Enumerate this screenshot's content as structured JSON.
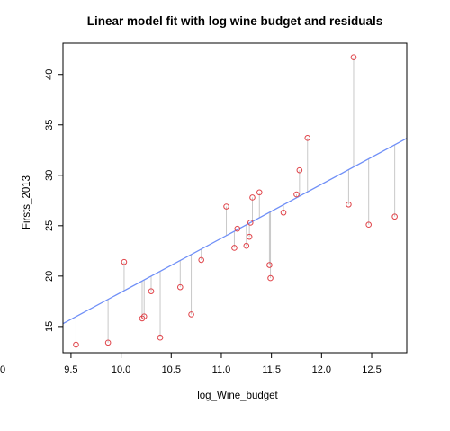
{
  "chart_data": {
    "type": "scatter",
    "title": "Linear model fit with log wine budget and residuals",
    "xlabel": "log_Wine_budget",
    "ylabel": "Firsts_2013",
    "xlim": [
      9.42,
      12.85
    ],
    "ylim": [
      12.4,
      43.1
    ],
    "x_ticks": [
      9.5,
      10.0,
      10.5,
      11.0,
      11.5,
      12.0,
      12.5
    ],
    "x_tick_labels": [
      "9.5",
      "10.0",
      "10.5",
      "11.0",
      "11.5",
      "12.0",
      "12.5"
    ],
    "y_ticks": [
      15,
      20,
      25,
      30,
      35,
      40
    ],
    "y_tick_labels": [
      "15",
      "20",
      "25",
      "30",
      "35",
      "40"
    ],
    "edge_label": "0",
    "grid": false,
    "fit_line": {
      "intercept": -35.21,
      "slope": 5.36,
      "color": "#6f8ff7"
    },
    "residual_color": "#c8c8c8",
    "point_color": "#e0444a",
    "points": [
      {
        "x": 9.55,
        "y": 13.2
      },
      {
        "x": 9.87,
        "y": 13.4
      },
      {
        "x": 10.03,
        "y": 21.4
      },
      {
        "x": 10.21,
        "y": 15.8
      },
      {
        "x": 10.23,
        "y": 16.0
      },
      {
        "x": 10.3,
        "y": 18.5
      },
      {
        "x": 10.39,
        "y": 13.9
      },
      {
        "x": 10.59,
        "y": 18.9
      },
      {
        "x": 10.7,
        "y": 16.2
      },
      {
        "x": 10.8,
        "y": 21.6
      },
      {
        "x": 11.05,
        "y": 26.9
      },
      {
        "x": 11.13,
        "y": 22.8
      },
      {
        "x": 11.16,
        "y": 24.7
      },
      {
        "x": 11.25,
        "y": 23.0
      },
      {
        "x": 11.28,
        "y": 23.9
      },
      {
        "x": 11.29,
        "y": 25.3
      },
      {
        "x": 11.31,
        "y": 27.8
      },
      {
        "x": 11.38,
        "y": 28.3
      },
      {
        "x": 11.48,
        "y": 21.1
      },
      {
        "x": 11.49,
        "y": 19.8
      },
      {
        "x": 11.62,
        "y": 26.3
      },
      {
        "x": 11.75,
        "y": 28.1
      },
      {
        "x": 11.78,
        "y": 30.5
      },
      {
        "x": 11.86,
        "y": 33.7
      },
      {
        "x": 12.27,
        "y": 27.1
      },
      {
        "x": 12.32,
        "y": 41.7
      },
      {
        "x": 12.47,
        "y": 25.1
      },
      {
        "x": 12.73,
        "y": 25.9
      }
    ]
  }
}
